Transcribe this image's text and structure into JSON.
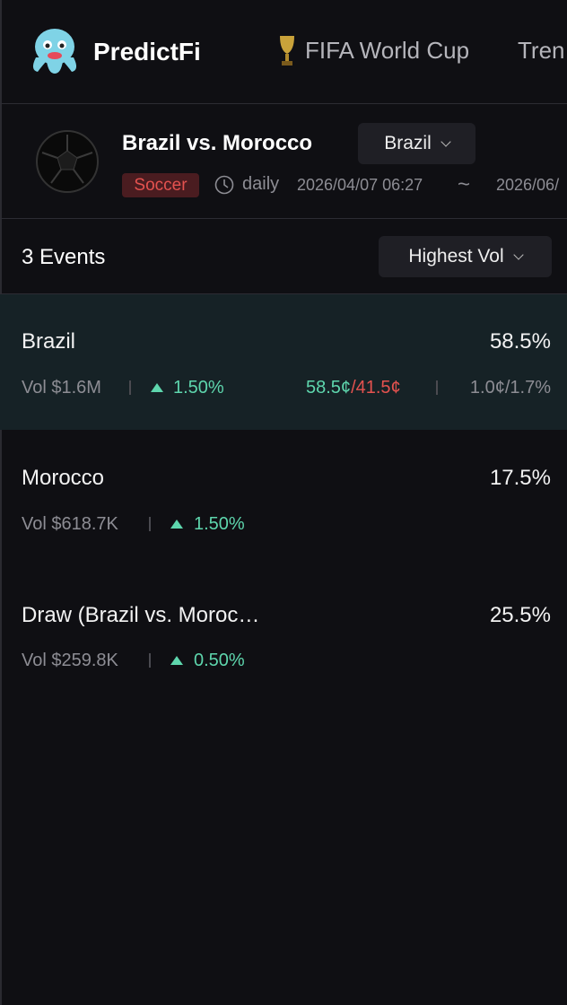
{
  "header": {
    "logo": "PredictFi",
    "nav": [
      "FIFA World Cup",
      "Tren"
    ]
  },
  "event": {
    "title": "Brazil vs. Morocco",
    "selector": "Brazil",
    "tag": "Soccer",
    "frequency": "daily",
    "start": "2026/04/07 06:27",
    "separator": "~",
    "end": "2026/06/"
  },
  "list": {
    "count": "3 Events",
    "sort": "Highest Vol",
    "rows": [
      {
        "name": "Brazil",
        "percent": "58.5%",
        "volume": "Vol $1.6M",
        "change": "1.50%",
        "yes": "58.5¢",
        "no": "/41.5¢",
        "spread": "1.0¢/1.7%"
      },
      {
        "name": "Morocco",
        "percent": "17.5%",
        "volume": "Vol $618.7K",
        "change": "1.50%"
      },
      {
        "name": "Draw (Brazil vs. Moroc…",
        "percent": "25.5%",
        "volume": "Vol $259.8K",
        "change": "0.50%"
      }
    ]
  }
}
